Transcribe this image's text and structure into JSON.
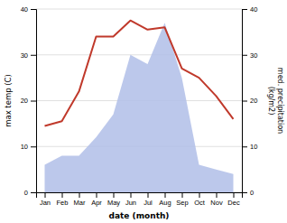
{
  "chart_data": {
    "type": "line",
    "categories": [
      "Jan",
      "Feb",
      "Mar",
      "Apr",
      "May",
      "Jun",
      "Jul",
      "Aug",
      "Sep",
      "Oct",
      "Nov",
      "Dec"
    ],
    "xlabel": "date (month)",
    "ylabel": "max temp (C)",
    "y2label": "med. precipitation\n(kg/m2)",
    "ylim": [
      0,
      40
    ],
    "yticks": [
      0,
      10,
      20,
      30,
      40
    ],
    "y2lim": [
      0,
      40
    ],
    "y2ticks": [
      0,
      10,
      20,
      30,
      40
    ],
    "grid": true,
    "series": [
      {
        "type": "area",
        "axis": "y2",
        "color": "#b0bee8",
        "values": [
          6,
          8,
          8,
          12,
          17,
          30,
          28,
          37,
          25,
          6,
          5,
          4
        ]
      },
      {
        "type": "line",
        "color": "#c0392b",
        "values": [
          14.5,
          15.5,
          22,
          34,
          34,
          37.5,
          35.5,
          36,
          27,
          25,
          21,
          16
        ]
      }
    ]
  }
}
